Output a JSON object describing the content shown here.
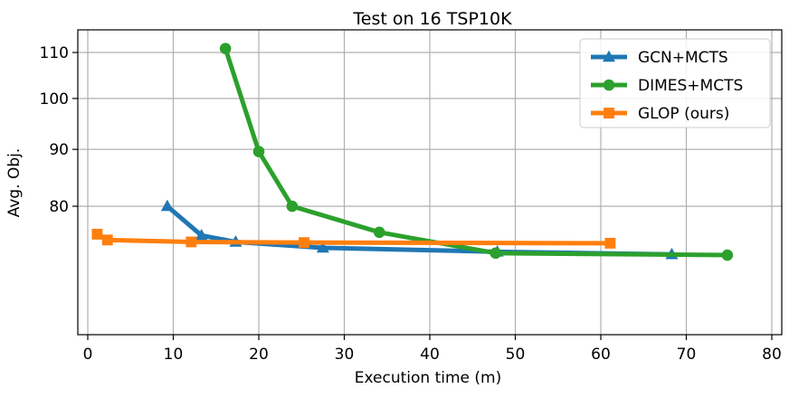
{
  "chart_data": {
    "type": "line",
    "title": "Test on 16 TSP10K",
    "xlabel": "Execution time (m)",
    "ylabel": "Avg. Obj.",
    "x_ticks": [
      0,
      10,
      20,
      30,
      40,
      50,
      60,
      70,
      80
    ],
    "y_ticks": [
      80,
      90,
      100,
      110
    ],
    "grid": true,
    "legend_position": "top-right",
    "series": [
      {
        "name": "GCN+MCTS",
        "color": "#1f77b4",
        "marker": "triangle",
        "x": [
          9.3,
          13.3,
          17.3,
          27.5,
          47.9,
          68.3
        ],
        "y": [
          80.0,
          75.3,
          74.3,
          73.4,
          72.8,
          72.4
        ]
      },
      {
        "name": "DIMES+MCTS",
        "color": "#2ca02c",
        "marker": "circle",
        "x": [
          16.1,
          20.0,
          23.9,
          34.1,
          47.7,
          74.8
        ],
        "y": [
          110.9,
          89.6,
          80.0,
          75.8,
          72.6,
          72.3
        ]
      },
      {
        "name": "GLOP (ours)",
        "color": "#ff7f0e",
        "marker": "square",
        "x": [
          1.1,
          2.3,
          12.1,
          25.3,
          61.1
        ],
        "y": [
          75.5,
          74.6,
          74.3,
          74.2,
          74.1
        ]
      }
    ]
  }
}
